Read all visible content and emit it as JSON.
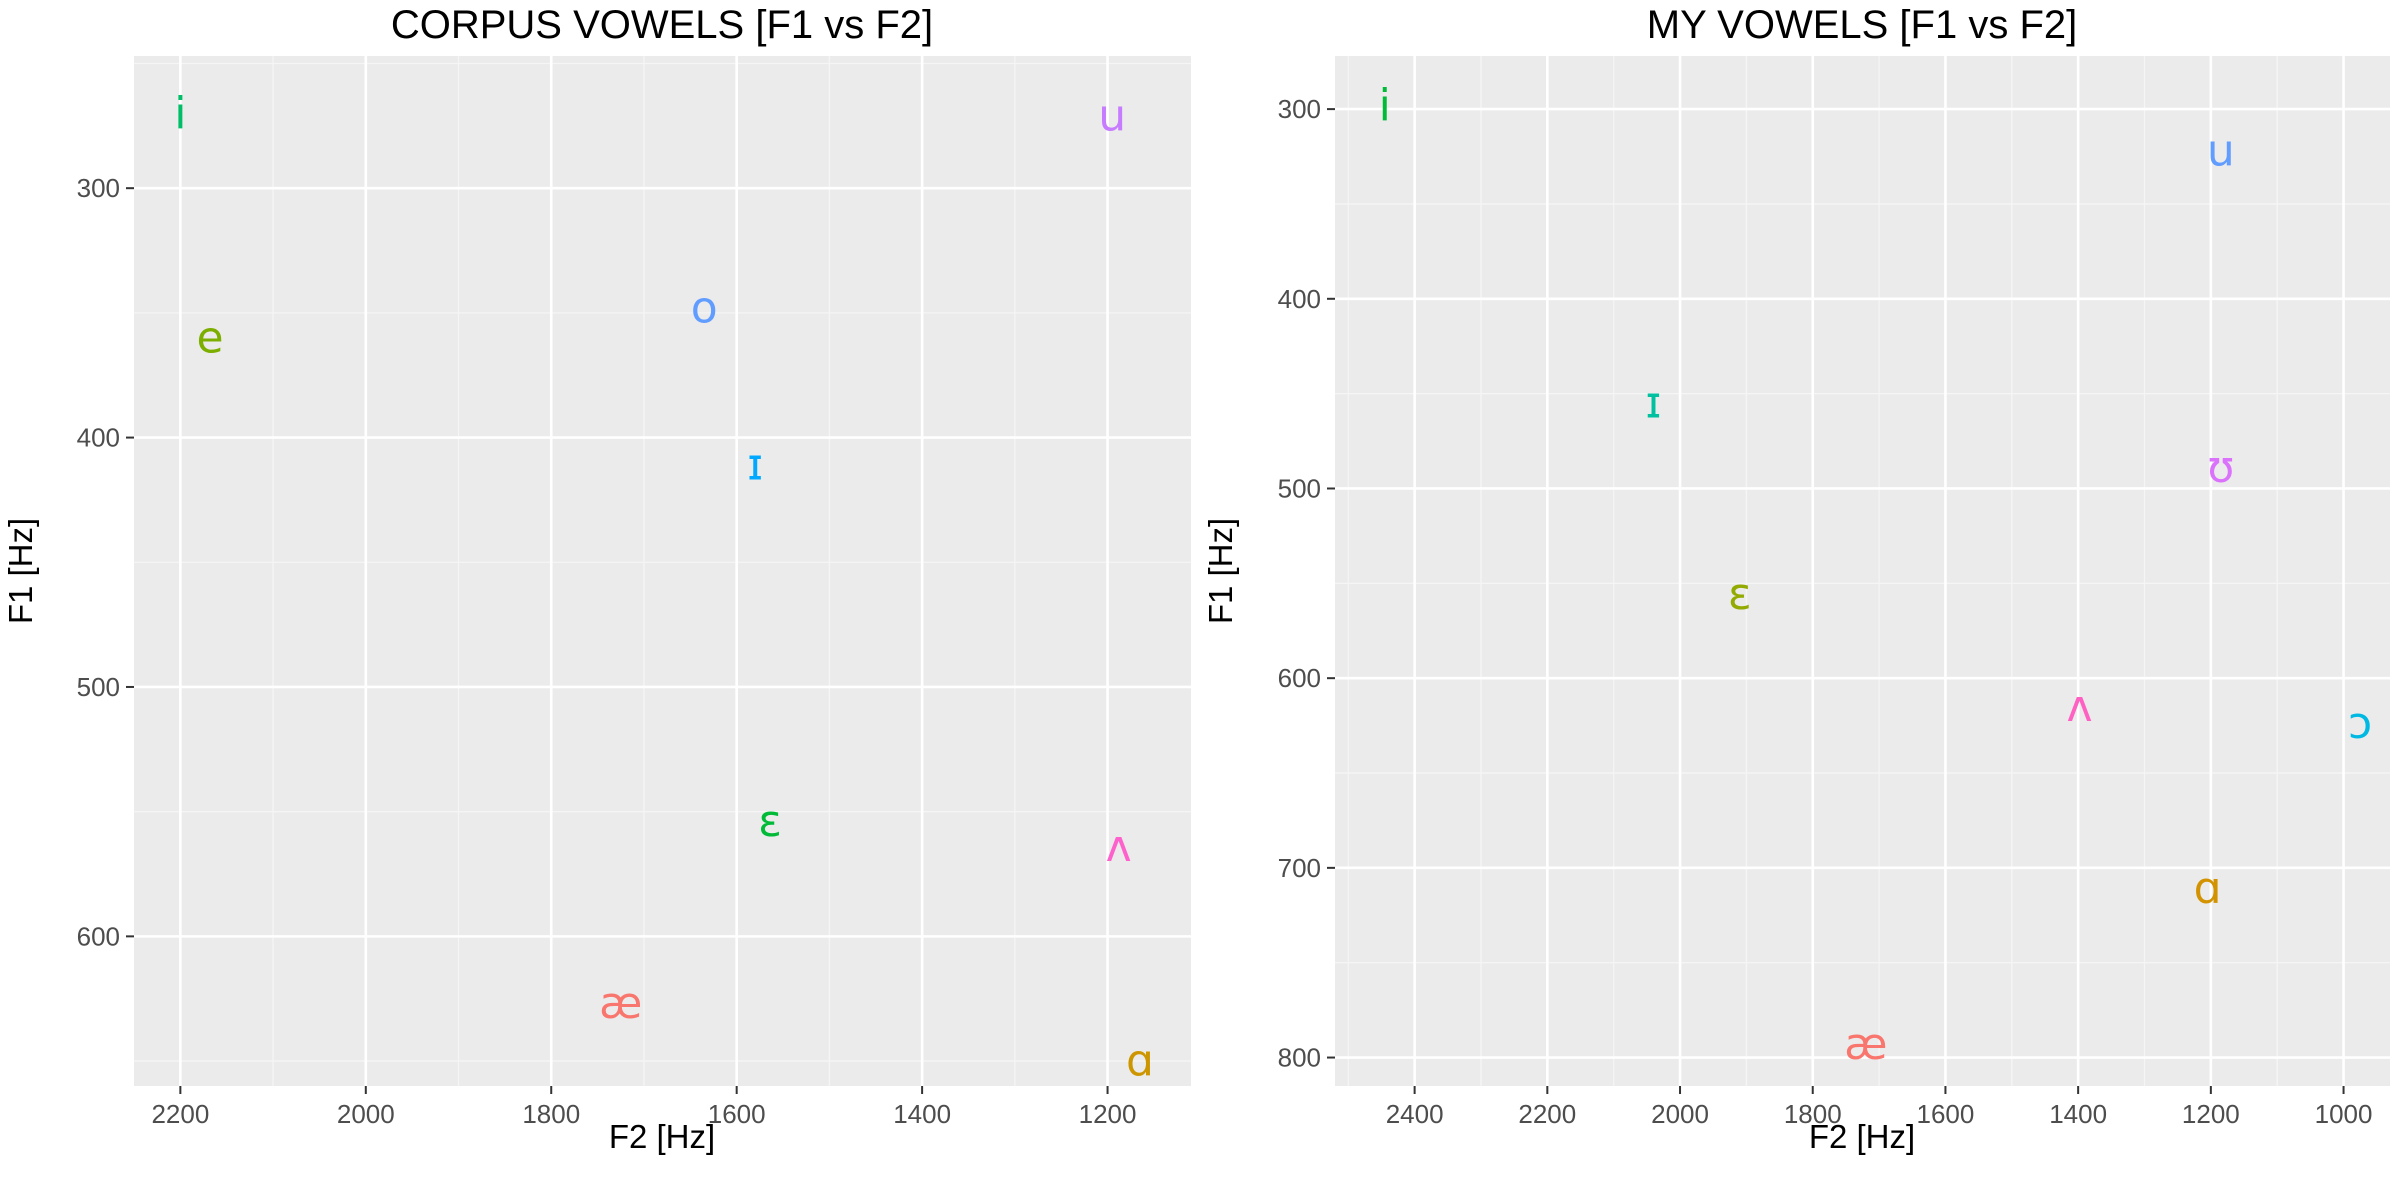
{
  "chart_data": [
    {
      "type": "scatter",
      "title": "CORPUS VOWELS [F1 vs F2]",
      "xlabel": "F2 [Hz]",
      "ylabel": "F1 [Hz]",
      "x_reversed": true,
      "y_reversed": true,
      "xlim": [
        2250,
        1110
      ],
      "ylim": [
        247,
        660
      ],
      "x_ticks": [
        2200,
        2000,
        1800,
        1600,
        1400,
        1200
      ],
      "y_ticks": [
        300,
        400,
        500,
        600
      ],
      "grid": true,
      "points": [
        {
          "label": "i",
          "x": 2200,
          "y": 270,
          "color": "#00BE67"
        },
        {
          "label": "e",
          "x": 2168,
          "y": 360,
          "color": "#7CAE00"
        },
        {
          "label": "o",
          "x": 1635,
          "y": 348,
          "color": "#619CFF"
        },
        {
          "label": "u",
          "x": 1195,
          "y": 271,
          "color": "#C77CFF"
        },
        {
          "label": "ɪ",
          "x": 1580,
          "y": 411,
          "color": "#00A9FF"
        },
        {
          "label": "ɛ",
          "x": 1564,
          "y": 554,
          "color": "#00BA38"
        },
        {
          "label": "ʌ",
          "x": 1188,
          "y": 564,
          "color": "#FF61CC"
        },
        {
          "label": "æ",
          "x": 1725,
          "y": 627,
          "color": "#F8766D"
        },
        {
          "label": "ɑ",
          "x": 1165,
          "y": 650,
          "color": "#CD9600"
        }
      ]
    },
    {
      "type": "scatter",
      "title": "MY VOWELS [F1 vs F2]",
      "xlabel": "F2 [Hz]",
      "ylabel": "F1 [Hz]",
      "x_reversed": true,
      "y_reversed": true,
      "xlim": [
        2520,
        930
      ],
      "ylim": [
        272,
        815
      ],
      "x_ticks": [
        2400,
        2200,
        2000,
        1800,
        1600,
        1400,
        1200,
        1000
      ],
      "y_ticks": [
        300,
        400,
        500,
        600,
        700,
        800
      ],
      "grid": true,
      "points": [
        {
          "label": "i",
          "x": 2445,
          "y": 298,
          "color": "#00BA38"
        },
        {
          "label": "u",
          "x": 1185,
          "y": 322,
          "color": "#619CFF"
        },
        {
          "label": "ɪ",
          "x": 2040,
          "y": 455,
          "color": "#00C19F"
        },
        {
          "label": "ʊ",
          "x": 1185,
          "y": 489,
          "color": "#DB72FB"
        },
        {
          "label": "ɛ",
          "x": 1910,
          "y": 556,
          "color": "#93AA00"
        },
        {
          "label": "ʌ",
          "x": 1398,
          "y": 615,
          "color": "#FF61C3"
        },
        {
          "label": "ɔ",
          "x": 975,
          "y": 624,
          "color": "#00B9E3"
        },
        {
          "label": "ɑ",
          "x": 1205,
          "y": 711,
          "color": "#D39200"
        },
        {
          "label": "æ",
          "x": 1720,
          "y": 793,
          "color": "#F8766D"
        }
      ]
    }
  ]
}
